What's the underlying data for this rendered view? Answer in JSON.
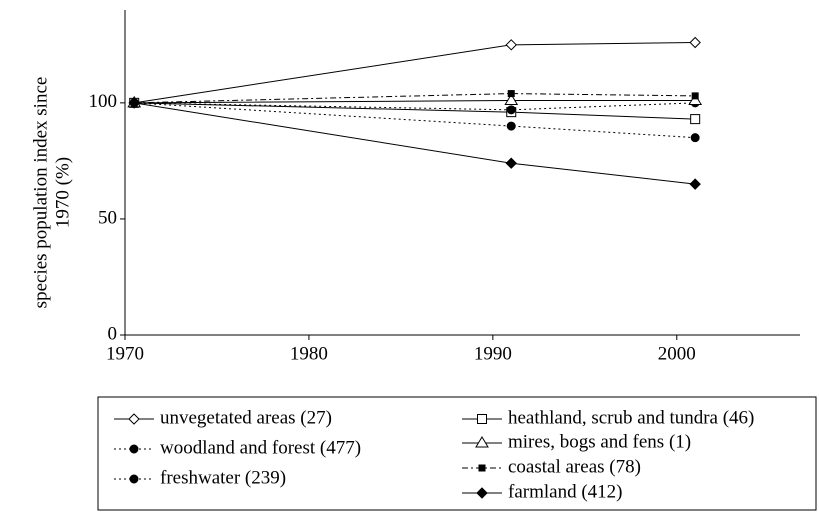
{
  "chart_data": {
    "type": "line",
    "ylabel": [
      "species population index since",
      "1970 (%)"
    ],
    "xlim": [
      1970,
      2006.7
    ],
    "xticks": [
      1970,
      1980,
      1990,
      2000
    ],
    "ylim": [
      0,
      140
    ],
    "yticks": [
      0,
      50,
      100
    ],
    "x": [
      1970.5,
      1991,
      2001
    ],
    "series": [
      {
        "name": "unvegetated areas (27)",
        "color": "#000000",
        "marker": "diamond-open",
        "dash": "solid",
        "values": [
          100,
          125,
          126
        ]
      },
      {
        "name": "heathland, scrub and tundra (46)",
        "color": "#000000",
        "marker": "square-open",
        "dash": "solid",
        "values": [
          100,
          96,
          93
        ]
      },
      {
        "name": "woodland and forest (477)",
        "color": "#000000",
        "marker": "circle-filled",
        "dash": "dotted",
        "values": [
          100,
          97,
          100
        ]
      },
      {
        "name": "mires, bogs and fens (1)",
        "color": "#000000",
        "marker": "triangle-open",
        "dash": "solid",
        "values": [
          100,
          101,
          101
        ]
      },
      {
        "name": "freshwater (239)",
        "color": "#000000",
        "marker": "circle-filled",
        "dash": "dotted",
        "values": [
          100,
          90,
          85
        ]
      },
      {
        "name": "coastal areas (78)",
        "color": "#000000",
        "marker": "square-filled",
        "dash": "dashdot",
        "values": [
          100,
          104,
          103
        ]
      },
      {
        "name": "farmland (412)",
        "color": "#000000",
        "marker": "diamond-filled",
        "dash": "solid",
        "values": [
          100,
          74,
          65
        ]
      }
    ]
  }
}
